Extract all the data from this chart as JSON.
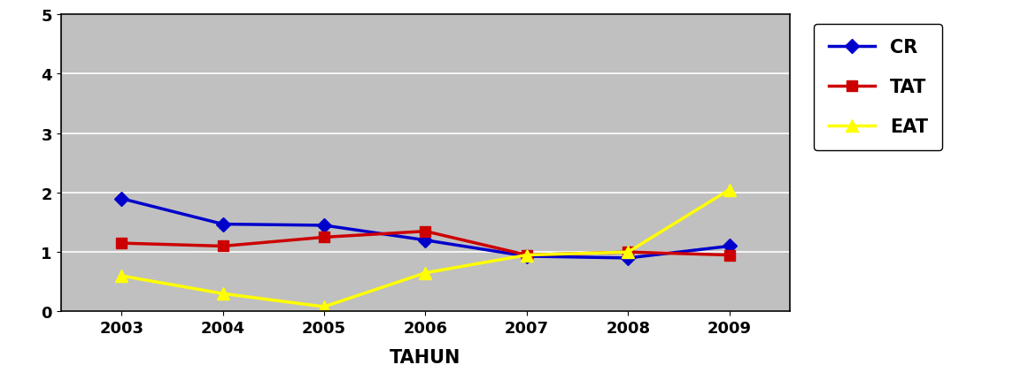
{
  "years": [
    2003,
    2004,
    2005,
    2006,
    2007,
    2008,
    2009
  ],
  "CR": [
    1.9,
    1.47,
    1.45,
    1.2,
    0.93,
    0.9,
    1.1
  ],
  "TAT": [
    1.15,
    1.1,
    1.25,
    1.35,
    0.95,
    1.0,
    0.95
  ],
  "EAT": [
    0.6,
    0.3,
    0.08,
    0.65,
    0.95,
    1.0,
    2.05
  ],
  "CR_color": "#0000CC",
  "TAT_color": "#CC0000",
  "EAT_color": "#FFFF00",
  "xlabel": "TAHUN",
  "ylim": [
    0,
    5
  ],
  "yticks": [
    0,
    1,
    2,
    3,
    4,
    5
  ],
  "bg_color": "#C0C0C0",
  "legend_labels": [
    "CR",
    "TAT",
    "EAT"
  ],
  "linewidth": 2.5,
  "markersize": 8
}
